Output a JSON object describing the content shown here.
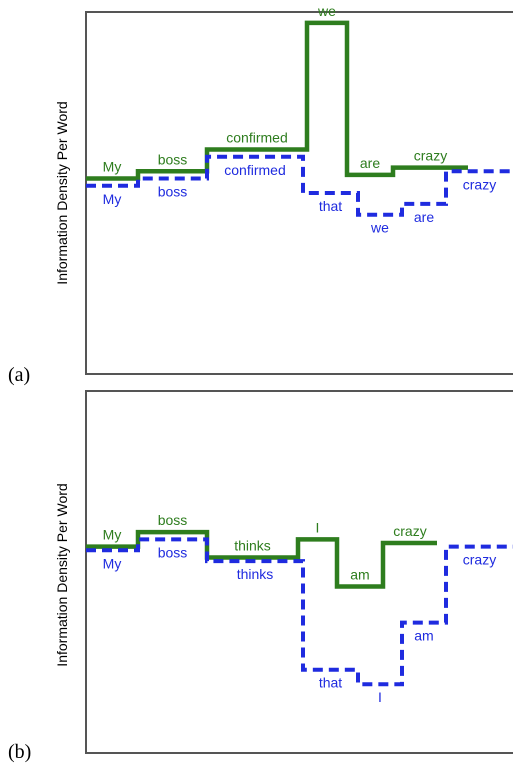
{
  "colors": {
    "green": "#2e7d1e",
    "blue": "#1f2bdf",
    "axis": "#555555"
  },
  "chart_data": [
    {
      "panel_label": "(a)",
      "type": "line",
      "ylabel": "Information Density Per Word",
      "ylim": [
        0,
        10
      ],
      "series": [
        {
          "color": "green",
          "style": "solid",
          "words": [
            "My",
            "boss",
            "confirmed",
            "we",
            "are",
            "crazy"
          ],
          "values": [
            5.4,
            5.6,
            6.2,
            9.7,
            5.5,
            5.7
          ]
        },
        {
          "color": "blue",
          "style": "dashed",
          "words": [
            "My",
            "boss",
            "confirmed",
            "that",
            "we",
            "are",
            "crazy"
          ],
          "values": [
            5.2,
            5.4,
            6.0,
            5.0,
            4.4,
            4.7,
            5.6
          ]
        }
      ]
    },
    {
      "panel_label": "(b)",
      "type": "line",
      "ylabel": "Information Density Per Word",
      "ylim": [
        0,
        10
      ],
      "series": [
        {
          "color": "green",
          "style": "solid",
          "words": [
            "My",
            "boss",
            "thinks",
            "I",
            "am",
            "crazy"
          ],
          "values": [
            5.7,
            6.1,
            5.4,
            5.9,
            4.6,
            5.8
          ]
        },
        {
          "color": "blue",
          "style": "dashed",
          "words": [
            "My",
            "boss",
            "thinks",
            "that",
            "I",
            "am",
            "crazy"
          ],
          "values": [
            5.6,
            5.9,
            5.3,
            2.3,
            1.9,
            3.6,
            5.7
          ]
        }
      ]
    }
  ]
}
